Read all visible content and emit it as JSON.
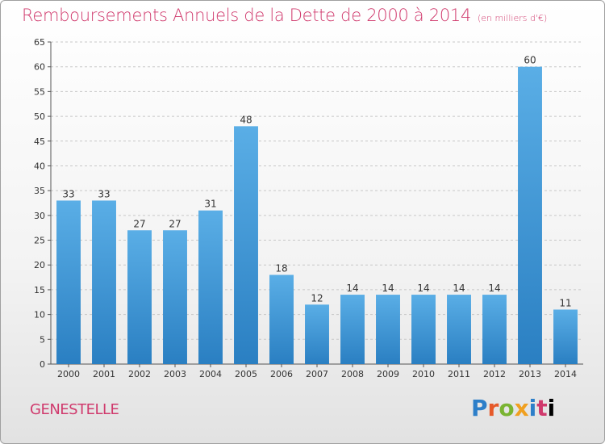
{
  "title": "Remboursements Annuels de la Dette de 2000 à 2014",
  "unit": "(en milliers d'€)",
  "commune": "GENESTELLE",
  "brand": {
    "name": "Proxiti",
    "letters": [
      "P",
      "r",
      "o",
      "x",
      "i",
      "t",
      "i"
    ]
  },
  "colors": {
    "title": "#d03a6d",
    "bar_light": "#5aaee6",
    "bar_dark": "#2a7fc2",
    "grid": "#c8c8c8"
  },
  "chart_data": {
    "type": "bar",
    "title": "Remboursements Annuels de la Dette de 2000 à 2014",
    "xlabel": "",
    "ylabel": "",
    "categories": [
      "2000",
      "2001",
      "2002",
      "2003",
      "2004",
      "2005",
      "2006",
      "2007",
      "2008",
      "2009",
      "2010",
      "2011",
      "2012",
      "2013",
      "2014"
    ],
    "values": [
      33,
      33,
      27,
      27,
      31,
      48,
      18,
      12,
      14,
      14,
      14,
      14,
      14,
      60,
      11
    ],
    "ylim": [
      0,
      65
    ],
    "yticks": [
      0,
      5,
      10,
      15,
      20,
      25,
      30,
      35,
      40,
      45,
      50,
      55,
      60,
      65
    ],
    "grid": true
  }
}
